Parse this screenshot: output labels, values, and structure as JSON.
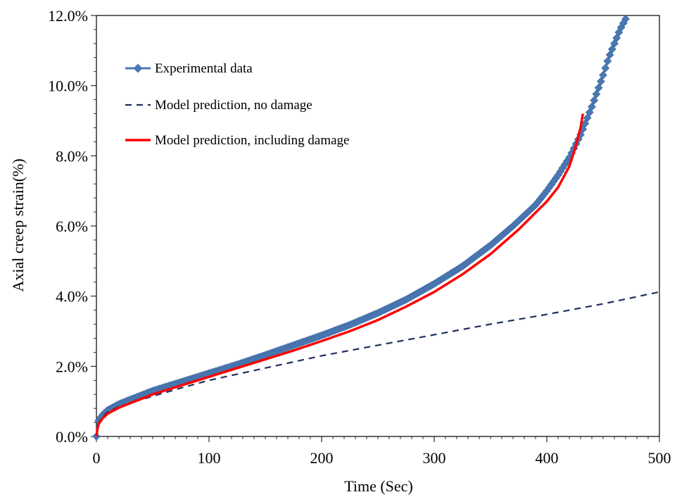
{
  "chart_data": {
    "type": "line",
    "xlabel": "Time (Sec)",
    "ylabel": "Axial creep strain(%)",
    "xlim": [
      0,
      500
    ],
    "ylim": [
      0,
      12
    ],
    "x_ticks": [
      "0",
      "100",
      "200",
      "300",
      "400",
      "500"
    ],
    "y_ticks": [
      "0.0%",
      "2.0%",
      "4.0%",
      "6.0%",
      "8.0%",
      "10.0%",
      "12.0%"
    ],
    "grid": false,
    "legend_position": "top-left",
    "series": [
      {
        "name": "Experimental data",
        "style": "line-with-diamond-markers",
        "color": "#4a78b3",
        "x": [
          0,
          1,
          2,
          5,
          10,
          20,
          30,
          50,
          75,
          100,
          125,
          150,
          175,
          200,
          225,
          250,
          275,
          300,
          325,
          350,
          370,
          390,
          400,
          410,
          420,
          430,
          440,
          450,
          455,
          460,
          465,
          470
        ],
        "y": [
          0,
          0.3,
          0.45,
          0.6,
          0.75,
          0.92,
          1.05,
          1.3,
          1.55,
          1.8,
          2.05,
          2.32,
          2.6,
          2.88,
          3.18,
          3.52,
          3.9,
          4.35,
          4.85,
          5.45,
          6.0,
          6.6,
          7.0,
          7.45,
          7.95,
          8.6,
          9.4,
          10.3,
          10.8,
          11.2,
          11.6,
          11.9
        ]
      },
      {
        "name": "Model prediction, no damage",
        "style": "dashed-line",
        "color": "#1f2f5e",
        "x": [
          0,
          1,
          2,
          5,
          10,
          20,
          30,
          50,
          75,
          100,
          150,
          200,
          250,
          300,
          350,
          400,
          450,
          500
        ],
        "y": [
          0,
          0.25,
          0.38,
          0.55,
          0.7,
          0.85,
          0.95,
          1.15,
          1.38,
          1.6,
          1.95,
          2.3,
          2.6,
          2.9,
          3.2,
          3.48,
          3.78,
          4.12
        ]
      },
      {
        "name": "Model prediction, including damage",
        "style": "solid-line",
        "color": "#ff0000",
        "x": [
          0,
          1,
          2,
          5,
          10,
          20,
          30,
          50,
          75,
          100,
          125,
          150,
          175,
          200,
          225,
          250,
          275,
          300,
          325,
          350,
          375,
          400,
          410,
          420,
          425,
          430,
          432
        ],
        "y": [
          0,
          0.22,
          0.35,
          0.5,
          0.65,
          0.82,
          0.95,
          1.2,
          1.45,
          1.7,
          1.95,
          2.2,
          2.45,
          2.72,
          3.0,
          3.32,
          3.7,
          4.12,
          4.62,
          5.2,
          5.9,
          6.7,
          7.1,
          7.7,
          8.2,
          8.8,
          9.2
        ]
      }
    ]
  }
}
